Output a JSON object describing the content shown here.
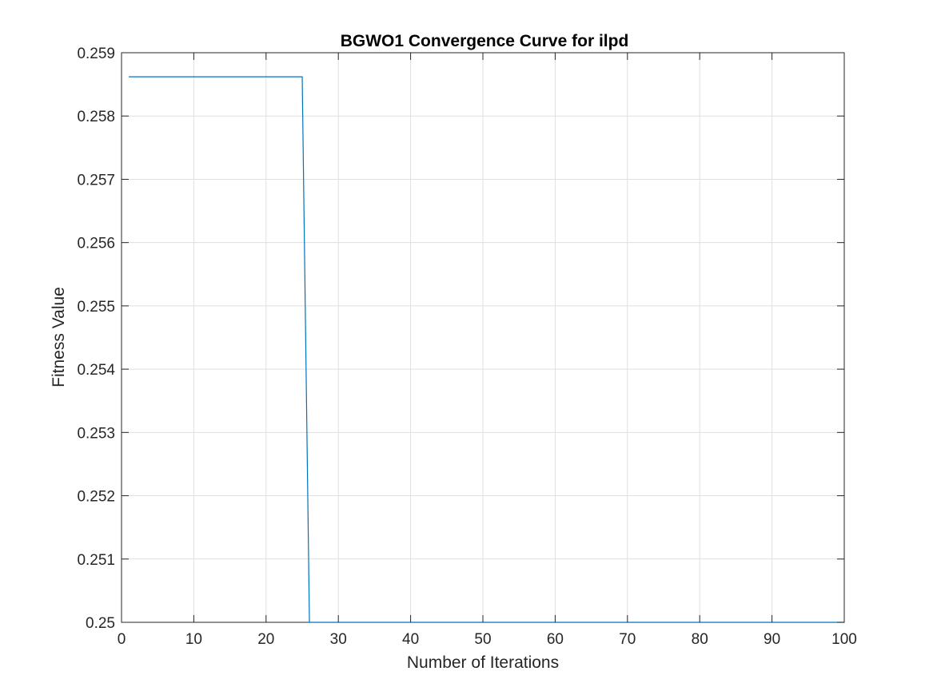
{
  "chart_data": {
    "type": "line",
    "title": "BGWO1 Convergence Curve for ilpd",
    "xlabel": "Number of Iterations",
    "ylabel": "Fitness Value",
    "xlim": [
      0,
      100
    ],
    "ylim": [
      0.25,
      0.259
    ],
    "xticks": [
      0,
      10,
      20,
      30,
      40,
      50,
      60,
      70,
      80,
      90,
      100
    ],
    "yticks": [
      0.25,
      0.251,
      0.252,
      0.253,
      0.254,
      0.255,
      0.256,
      0.257,
      0.258,
      0.259
    ],
    "xtick_labels": [
      "0",
      "10",
      "20",
      "30",
      "40",
      "50",
      "60",
      "70",
      "80",
      "90",
      "100"
    ],
    "ytick_labels": [
      "0.25",
      "0.251",
      "0.252",
      "0.253",
      "0.254",
      "0.255",
      "0.256",
      "0.257",
      "0.258",
      "0.259"
    ],
    "grid": true,
    "legend": false,
    "series": [
      {
        "color": "#0072BD",
        "x": [
          1,
          25,
          26,
          100
        ],
        "y": [
          0.25862,
          0.25862,
          0.25,
          0.25
        ]
      }
    ]
  }
}
